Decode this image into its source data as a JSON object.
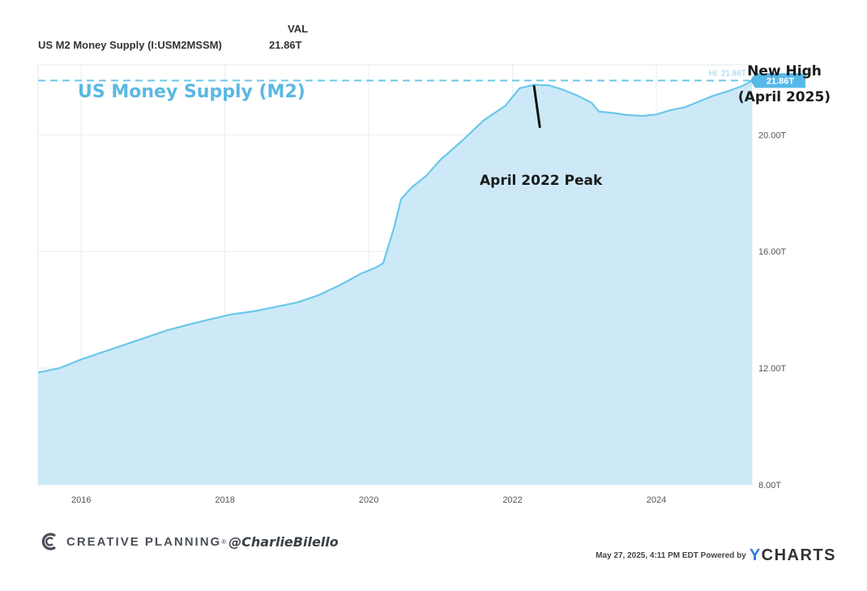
{
  "header": {
    "series_name": "US M2 Money Supply (I:USM2MSSM)",
    "value_heading": "VAL",
    "value": "21.86T"
  },
  "footer": {
    "brand": "CREATIVE PLANNING",
    "brand_mark": "®",
    "handle": "@CharlieBilello",
    "timestamp": "May 27, 2025, 4:11 PM EDT Powered by",
    "provider_prefix": "Y",
    "provider_rest": "CHARTS"
  },
  "colors": {
    "line": "#6cc7ea",
    "fill": "#cde9f7",
    "title": "#5bb8e3",
    "grid": "#e8edf2",
    "badge": "#55b9e8"
  },
  "chart_data": {
    "type": "area",
    "title": "US Money Supply (M2)",
    "xlabel": "",
    "ylabel": "",
    "xlim": [
      2015.4,
      2025.33
    ],
    "ylim": [
      8,
      22.4
    ],
    "x_ticks": [
      2016,
      2018,
      2020,
      2022,
      2024
    ],
    "x_tick_labels": [
      "2016",
      "2018",
      "2020",
      "2022",
      "2024"
    ],
    "y_ticks": [
      8,
      12,
      16,
      20
    ],
    "y_tick_labels": [
      "8.00T",
      "12.00T",
      "16.00T",
      "20.00T"
    ],
    "grid": true,
    "high_line": {
      "value": 21.86,
      "label": "Hi: 21.86T"
    },
    "last_value_badge": "21.86T",
    "series": [
      {
        "x": [
          2015.4,
          2015.7,
          2016.0,
          2016.3,
          2016.6,
          2016.9,
          2017.2,
          2017.5,
          2017.8,
          2018.1,
          2018.4,
          2018.7,
          2019.0,
          2019.3,
          2019.6,
          2019.9,
          2020.1,
          2020.2,
          2020.35,
          2020.45,
          2020.6,
          2020.8,
          2021.0,
          2021.3,
          2021.6,
          2021.9,
          2022.1,
          2022.3,
          2022.5,
          2022.7,
          2022.9,
          2023.1,
          2023.2,
          2023.4,
          2023.6,
          2023.8,
          2024.0,
          2024.2,
          2024.4,
          2024.6,
          2024.8,
          2025.0,
          2025.2,
          2025.33
        ],
        "y": [
          11.85,
          12.0,
          12.3,
          12.55,
          12.8,
          13.05,
          13.3,
          13.5,
          13.68,
          13.85,
          13.95,
          14.1,
          14.25,
          14.5,
          14.85,
          15.25,
          15.45,
          15.6,
          16.8,
          17.8,
          18.2,
          18.6,
          19.15,
          19.8,
          20.5,
          21.0,
          21.6,
          21.72,
          21.7,
          21.55,
          21.35,
          21.1,
          20.8,
          20.75,
          20.68,
          20.65,
          20.7,
          20.85,
          20.95,
          21.15,
          21.35,
          21.5,
          21.68,
          21.86
        ]
      }
    ],
    "annotations": [
      {
        "text": "April 2022 Peak",
        "x": 2022.3,
        "y": 21.72
      },
      {
        "text": "New High",
        "x": 2025.33,
        "y": 21.86
      },
      {
        "text": "(April 2025)",
        "x": 2025.33,
        "y": 21.86
      }
    ]
  }
}
